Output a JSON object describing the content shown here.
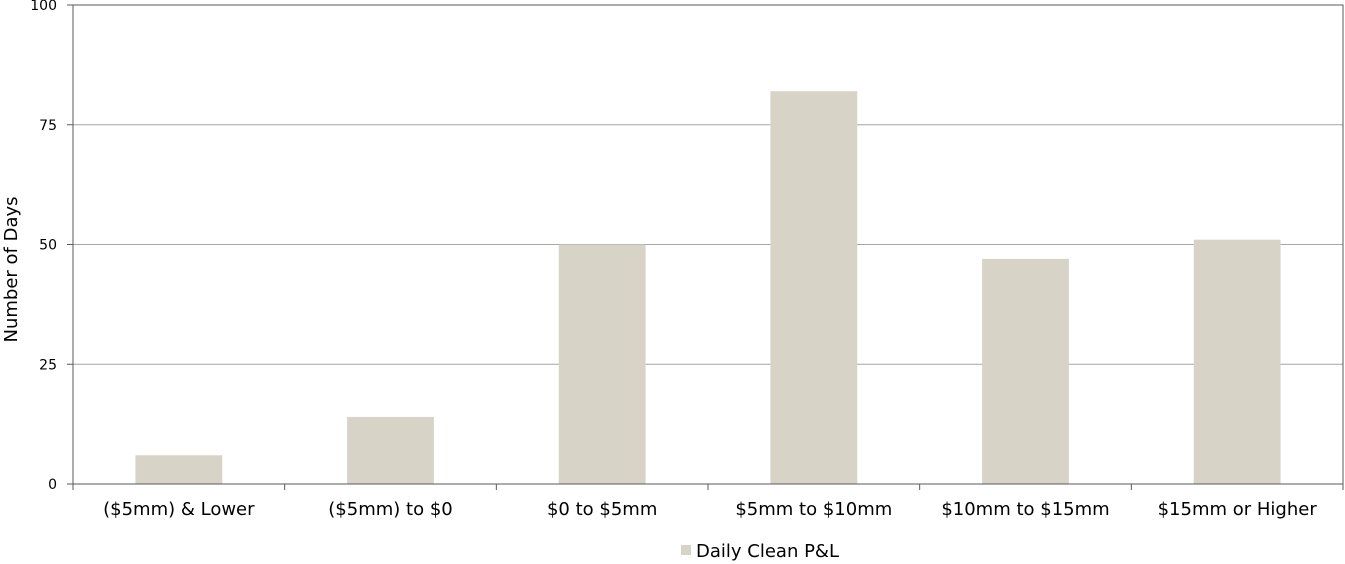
{
  "chart_data": {
    "type": "bar",
    "title": "",
    "xlabel": "",
    "ylabel": "Number of Days",
    "ylim": [
      0,
      100
    ],
    "yticks": [
      0,
      25,
      50,
      75,
      100
    ],
    "categories": [
      "($5mm) & Lower",
      "($5mm) to $0",
      "$0 to $5mm",
      "$5mm to $10mm",
      "$10mm to $15mm",
      "$15mm or Higher"
    ],
    "series": [
      {
        "name": "Daily Clean P&L",
        "values": [
          6,
          14,
          50,
          82,
          47,
          51
        ],
        "color": "#d7d3c7"
      }
    ],
    "grid": true,
    "legend_position": "bottom"
  }
}
